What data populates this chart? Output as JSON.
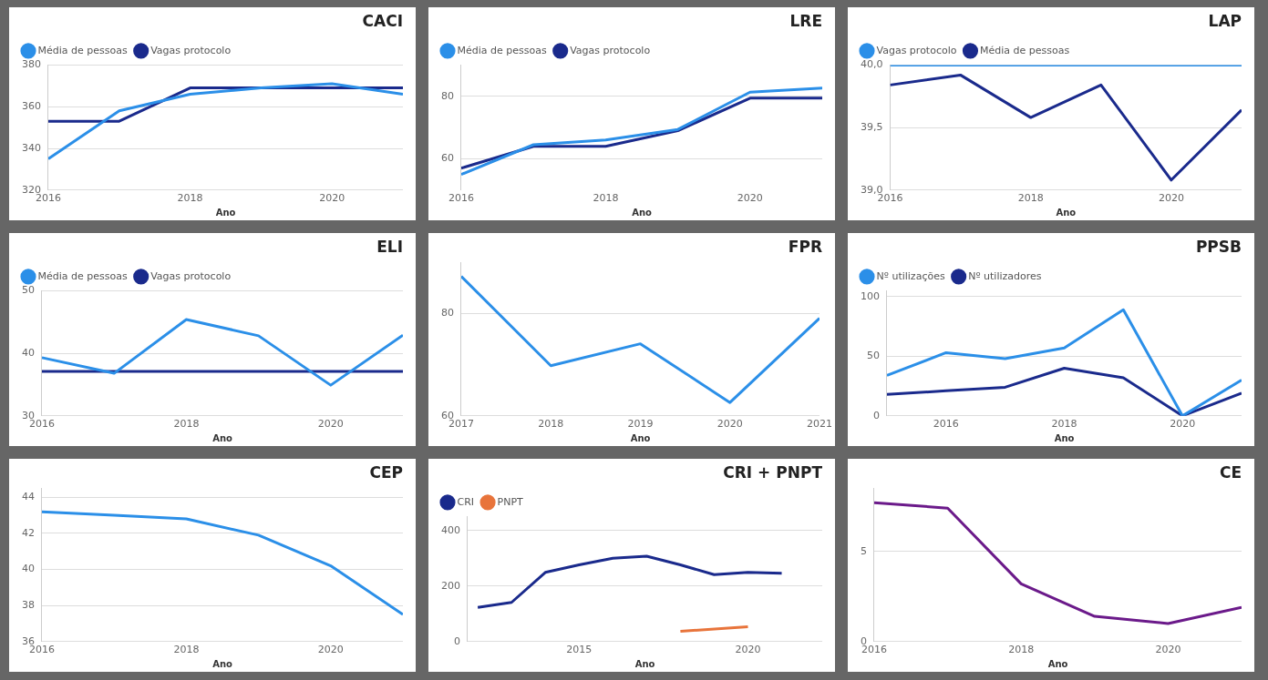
{
  "chart_data": [
    {
      "type": "line",
      "title": "CACI",
      "xlabel": "Ano",
      "legend": "top left",
      "grid": "y",
      "marker": "none",
      "x": [
        2016,
        2017,
        2018,
        2019,
        2020,
        2021
      ],
      "xlim": [
        2016,
        2021
      ],
      "xticks": [
        2016,
        2018,
        2020
      ],
      "ylim": [
        320,
        380
      ],
      "yticks": [
        320,
        340,
        360,
        380
      ],
      "series": [
        {
          "name": "Média de pessoas",
          "color": "#2b8fe8",
          "values": [
            335,
            358,
            366,
            369,
            371,
            366
          ]
        },
        {
          "name": "Vagas protocolo",
          "color": "#1a2a8c",
          "values": [
            353,
            353,
            369,
            369,
            369,
            369
          ]
        }
      ]
    },
    {
      "type": "line",
      "title": "LRE",
      "xlabel": "Ano",
      "legend": "top left",
      "grid": "y",
      "marker": "none",
      "x": [
        2016,
        2017,
        2018,
        2019,
        2020,
        2021
      ],
      "xlim": [
        2016,
        2021
      ],
      "xticks": [
        2016,
        2018,
        2020
      ],
      "ylim": [
        50,
        90
      ],
      "yticks": [
        60,
        80
      ],
      "series": [
        {
          "name": "Média de pessoas",
          "color": "#2b8fe8",
          "values": [
            55,
            64.5,
            66,
            69.4,
            81.3,
            82.6
          ]
        },
        {
          "name": "Vagas protocolo",
          "color": "#1a2a8c",
          "values": [
            57,
            64,
            64,
            69,
            79.4,
            79.4
          ]
        }
      ]
    },
    {
      "type": "line",
      "title": "LAP",
      "xlabel": "Ano",
      "legend": "top left",
      "grid": "y",
      "marker": "none",
      "x": [
        2016,
        2017,
        2018,
        2019,
        2020,
        2021
      ],
      "xlim": [
        2016,
        2021
      ],
      "xticks": [
        2016,
        2018,
        2020
      ],
      "ylim": [
        39,
        40
      ],
      "yticks": [
        {
          "value": 39,
          "label": "39,0"
        },
        {
          "value": 39.5,
          "label": "39,5"
        },
        {
          "value": 40,
          "label": "40,0"
        }
      ],
      "series": [
        {
          "name": "Vagas protocolo",
          "color": "#2b8fe8",
          "values": [
            40,
            40,
            40,
            40,
            40,
            40
          ]
        },
        {
          "name": "Média de pessoas",
          "color": "#1a2a8c",
          "values": [
            39.84,
            39.92,
            39.58,
            39.84,
            39.08,
            39.64
          ]
        }
      ]
    },
    {
      "type": "line",
      "title": "ELI",
      "xlabel": "Ano",
      "legend": "top left",
      "grid": "y",
      "marker": "none",
      "x": [
        2016,
        2017,
        2018,
        2019,
        2020,
        2021
      ],
      "xlim": [
        2016,
        2021
      ],
      "xticks": [
        2016,
        2018,
        2020
      ],
      "ylim": [
        30,
        50
      ],
      "yticks": [
        30,
        40,
        50
      ],
      "series": [
        {
          "name": "Média de pessoas",
          "color": "#2b8fe8",
          "values": [
            39.3,
            36.8,
            45.4,
            42.8,
            34.9,
            42.9
          ]
        },
        {
          "name": "Vagas protocolo",
          "color": "#1a2a8c",
          "values": [
            37.1,
            37.1,
            37.1,
            37.1,
            37.1,
            37.1
          ]
        }
      ]
    },
    {
      "type": "line",
      "title": "FPR",
      "xlabel": "Ano",
      "grid": "y",
      "marker": "none",
      "x": [
        2017,
        2018,
        2019,
        2020,
        2021
      ],
      "xlim": [
        2017,
        2021
      ],
      "xticks": [
        2017,
        2018,
        2019,
        2020,
        2021
      ],
      "ylim": [
        60,
        90
      ],
      "yticks": [
        60,
        80
      ],
      "series": [
        {
          "color": "#2b8fe8",
          "values": [
            87.3,
            69.8,
            74.1,
            62.6,
            79.1
          ]
        }
      ]
    },
    {
      "type": "line",
      "title": "PPSB",
      "xlabel": "Ano",
      "legend": "top left",
      "grid": "y",
      "marker": "none",
      "x": [
        2015,
        2016,
        2017,
        2018,
        2019,
        2020,
        2021
      ],
      "xlim": [
        2015,
        2021
      ],
      "xticks": [
        2016,
        2018,
        2020
      ],
      "ylim": [
        0,
        105
      ],
      "yticks": [
        0,
        50,
        100
      ],
      "series": [
        {
          "name": "Nº utilizações",
          "color": "#2b8fe8",
          "values": [
            34,
            53,
            48,
            57,
            89,
            0,
            30
          ]
        },
        {
          "name": "Nº utilizadores",
          "color": "#1a2a8c",
          "values": [
            18,
            21,
            24,
            40,
            32,
            0,
            19
          ]
        }
      ]
    },
    {
      "type": "line",
      "title": "CEP",
      "xlabel": "Ano",
      "grid": "y",
      "marker": "none",
      "x": [
        2016,
        2017,
        2018,
        2019,
        2020,
        2021
      ],
      "xlim": [
        2016,
        2021
      ],
      "xticks": [
        2016,
        2018,
        2020
      ],
      "ylim": [
        36,
        44.5
      ],
      "yticks": [
        36,
        38,
        40,
        42,
        44
      ],
      "series": [
        {
          "color": "#2b8fe8",
          "values": [
            43.2,
            43,
            42.8,
            41.9,
            40.2,
            37.5
          ]
        }
      ]
    },
    {
      "type": "line",
      "title": "CRI + PNPT",
      "xlabel": "Ano",
      "legend": "top left",
      "grid": "y",
      "marker": "none",
      "x": [
        2012,
        2013,
        2014,
        2015,
        2016,
        2017,
        2018,
        2019,
        2020,
        2021
      ],
      "xlim": [
        2011.7,
        2022.2
      ],
      "xticks": [
        2015,
        2020
      ],
      "ylim": [
        0,
        450
      ],
      "yticks": [
        0,
        200,
        400
      ],
      "series": [
        {
          "name": "CRI",
          "color": "#1a2a8c",
          "values": [
            123,
            141,
            249,
            276,
            300,
            307,
            276,
            241,
            249,
            246
          ]
        },
        {
          "name": "PNPT",
          "color": "#e8743b",
          "x": [
            2018,
            2020
          ],
          "values": [
            37,
            53
          ]
        }
      ]
    },
    {
      "type": "line",
      "title": "CE",
      "xlabel": "Ano",
      "grid": "y",
      "marker": "none",
      "x": [
        2016,
        2017,
        2018,
        2019,
        2020,
        2021
      ],
      "xlim": [
        2016,
        2021
      ],
      "xticks": [
        2016,
        2018,
        2020
      ],
      "ylim": [
        0,
        8.5
      ],
      "yticks": [
        0,
        5
      ],
      "series": [
        {
          "color": "#6b1a8a",
          "values": [
            7.7,
            7.4,
            3.2,
            1.4,
            1.0,
            1.9
          ]
        }
      ]
    }
  ]
}
